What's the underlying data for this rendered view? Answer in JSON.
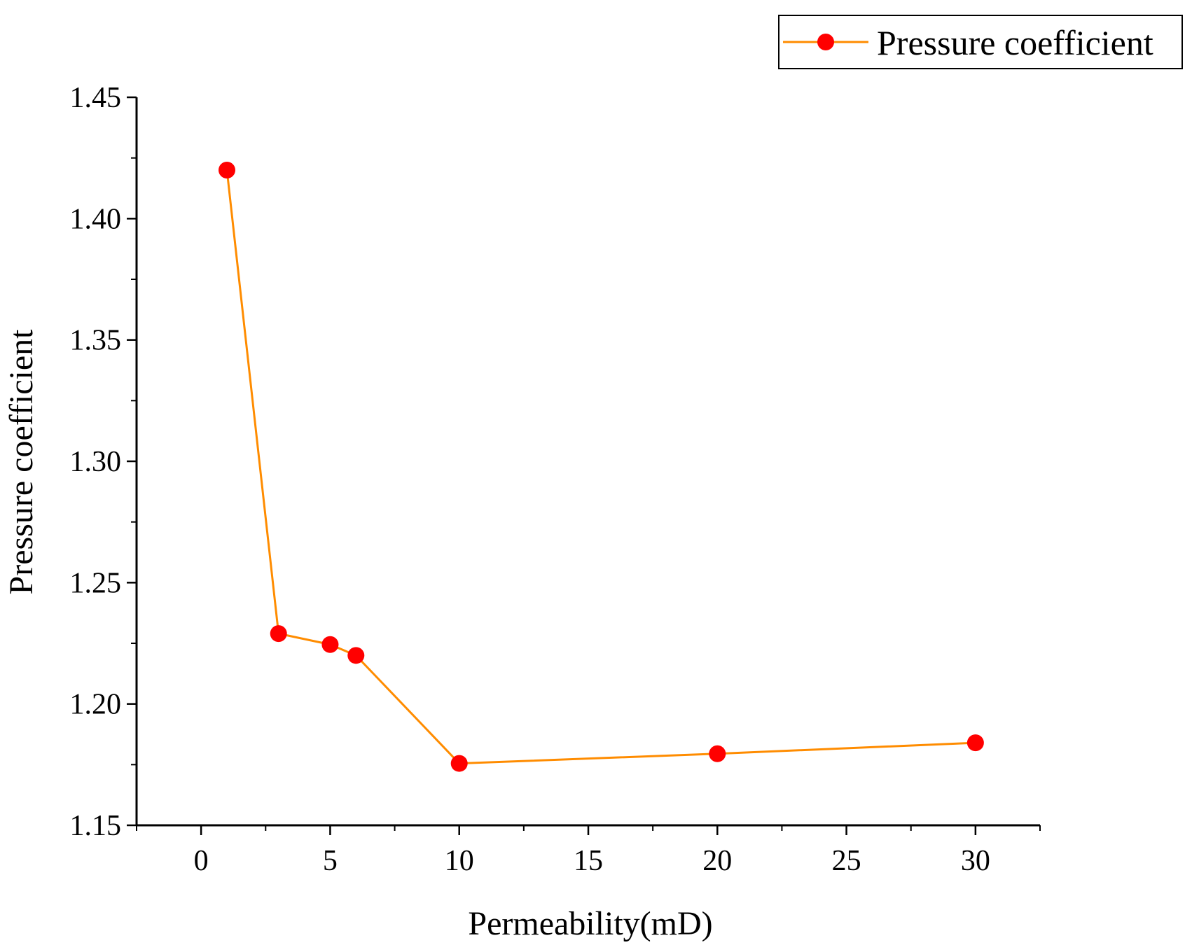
{
  "chart_data": {
    "type": "line",
    "title": "",
    "xlabel": "Permeability(mD)",
    "ylabel": "Pressure coefficient",
    "xlim": [
      -2.5,
      32.5
    ],
    "ylim": [
      1.15,
      1.45
    ],
    "x_major_ticks": [
      0,
      5,
      10,
      15,
      20,
      25,
      30
    ],
    "x_tick_labels": [
      "0",
      "5",
      "10",
      "15",
      "20",
      "25",
      "30"
    ],
    "y_major_ticks": [
      1.15,
      1.2,
      1.25,
      1.3,
      1.35,
      1.4,
      1.45
    ],
    "y_tick_labels": [
      "1.15",
      "1.20",
      "1.25",
      "1.30",
      "1.35",
      "1.40",
      "1.45"
    ],
    "grid": false,
    "legend_position": "top-right",
    "series": [
      {
        "name": "Pressure coefficient",
        "line_color": "#FF8C00",
        "marker_color": "#FF0000",
        "x": [
          1,
          3,
          5,
          6,
          10,
          20,
          30
        ],
        "y": [
          1.42,
          1.229,
          1.2245,
          1.22,
          1.1755,
          1.1795,
          1.184
        ]
      }
    ]
  }
}
